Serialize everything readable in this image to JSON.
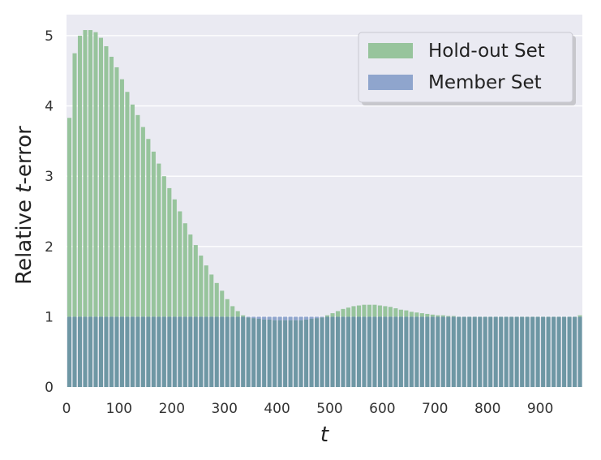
{
  "chart_data": {
    "type": "bar",
    "xlabel": "t",
    "ylabel_prefix": "Relative ",
    "ylabel_italic": "t",
    "ylabel_suffix": "-error",
    "xlim": [
      0,
      980
    ],
    "ylim": [
      0,
      5.3
    ],
    "xticks": [
      0,
      100,
      200,
      300,
      400,
      500,
      600,
      700,
      800,
      900
    ],
    "yticks": [
      0,
      1,
      2,
      3,
      4,
      5
    ],
    "grid": true,
    "legend_position": "top-right",
    "bar_step": 10,
    "series": [
      {
        "name": "Hold-out Set",
        "color": "#97c49c",
        "x": [
          0,
          10,
          20,
          30,
          40,
          50,
          60,
          70,
          80,
          90,
          100,
          110,
          120,
          130,
          140,
          150,
          160,
          170,
          180,
          190,
          200,
          210,
          220,
          230,
          240,
          250,
          260,
          270,
          280,
          290,
          300,
          310,
          320,
          330,
          340,
          350,
          360,
          370,
          380,
          390,
          400,
          410,
          420,
          430,
          440,
          450,
          460,
          470,
          480,
          490,
          500,
          510,
          520,
          530,
          540,
          550,
          560,
          570,
          580,
          590,
          600,
          610,
          620,
          630,
          640,
          650,
          660,
          670,
          680,
          690,
          700,
          710,
          720,
          730,
          740,
          750,
          760,
          770,
          780,
          790,
          800,
          810,
          820,
          830,
          840,
          850,
          860,
          870,
          880,
          890,
          900,
          910,
          920,
          930,
          940,
          950,
          960,
          970
        ],
        "values": [
          3.83,
          4.75,
          5.0,
          5.08,
          5.08,
          5.05,
          4.97,
          4.85,
          4.7,
          4.55,
          4.38,
          4.2,
          4.02,
          3.87,
          3.7,
          3.53,
          3.35,
          3.18,
          3.0,
          2.83,
          2.67,
          2.5,
          2.33,
          2.17,
          2.02,
          1.87,
          1.73,
          1.6,
          1.48,
          1.37,
          1.25,
          1.15,
          1.08,
          1.02,
          0.99,
          0.98,
          0.97,
          0.96,
          0.96,
          0.95,
          0.95,
          0.95,
          0.95,
          0.95,
          0.95,
          0.96,
          0.97,
          0.98,
          0.99,
          1.02,
          1.05,
          1.08,
          1.11,
          1.13,
          1.15,
          1.16,
          1.17,
          1.17,
          1.17,
          1.16,
          1.15,
          1.14,
          1.12,
          1.1,
          1.09,
          1.07,
          1.06,
          1.05,
          1.04,
          1.03,
          1.02,
          1.02,
          1.01,
          1.01,
          1.0,
          1.0,
          1.0,
          1.0,
          1.0,
          1.0,
          1.0,
          1.0,
          1.0,
          1.0,
          1.0,
          1.0,
          1.0,
          1.0,
          1.0,
          1.0,
          1.0,
          1.0,
          1.0,
          1.0,
          1.0,
          1.0,
          1.0,
          1.02
        ]
      },
      {
        "name": "Member Set",
        "color": "#8fa5cd",
        "x": [
          0,
          10,
          20,
          30,
          40,
          50,
          60,
          70,
          80,
          90,
          100,
          110,
          120,
          130,
          140,
          150,
          160,
          170,
          180,
          190,
          200,
          210,
          220,
          230,
          240,
          250,
          260,
          270,
          280,
          290,
          300,
          310,
          320,
          330,
          340,
          350,
          360,
          370,
          380,
          390,
          400,
          410,
          420,
          430,
          440,
          450,
          460,
          470,
          480,
          490,
          500,
          510,
          520,
          530,
          540,
          550,
          560,
          570,
          580,
          590,
          600,
          610,
          620,
          630,
          640,
          650,
          660,
          670,
          680,
          690,
          700,
          710,
          720,
          730,
          740,
          750,
          760,
          770,
          780,
          790,
          800,
          810,
          820,
          830,
          840,
          850,
          860,
          870,
          880,
          890,
          900,
          910,
          920,
          930,
          940,
          950,
          960,
          970
        ],
        "values": [
          1,
          1,
          1,
          1,
          1,
          1,
          1,
          1,
          1,
          1,
          1,
          1,
          1,
          1,
          1,
          1,
          1,
          1,
          1,
          1,
          1,
          1,
          1,
          1,
          1,
          1,
          1,
          1,
          1,
          1,
          1,
          1,
          1,
          1,
          1,
          1,
          1,
          1,
          1,
          1,
          1,
          1,
          1,
          1,
          1,
          1,
          1,
          1,
          1,
          1,
          1,
          1,
          1,
          1,
          1,
          1,
          1,
          1,
          1,
          1,
          1,
          1,
          1,
          1,
          1,
          1,
          1,
          1,
          1,
          1,
          1,
          1,
          1,
          1,
          1,
          1,
          1,
          1,
          1,
          1,
          1,
          1,
          1,
          1,
          1,
          1,
          1,
          1,
          1,
          1,
          1,
          1,
          1,
          1,
          1,
          1,
          1,
          1
        ]
      }
    ],
    "overlap_color": "#6e97a4"
  }
}
